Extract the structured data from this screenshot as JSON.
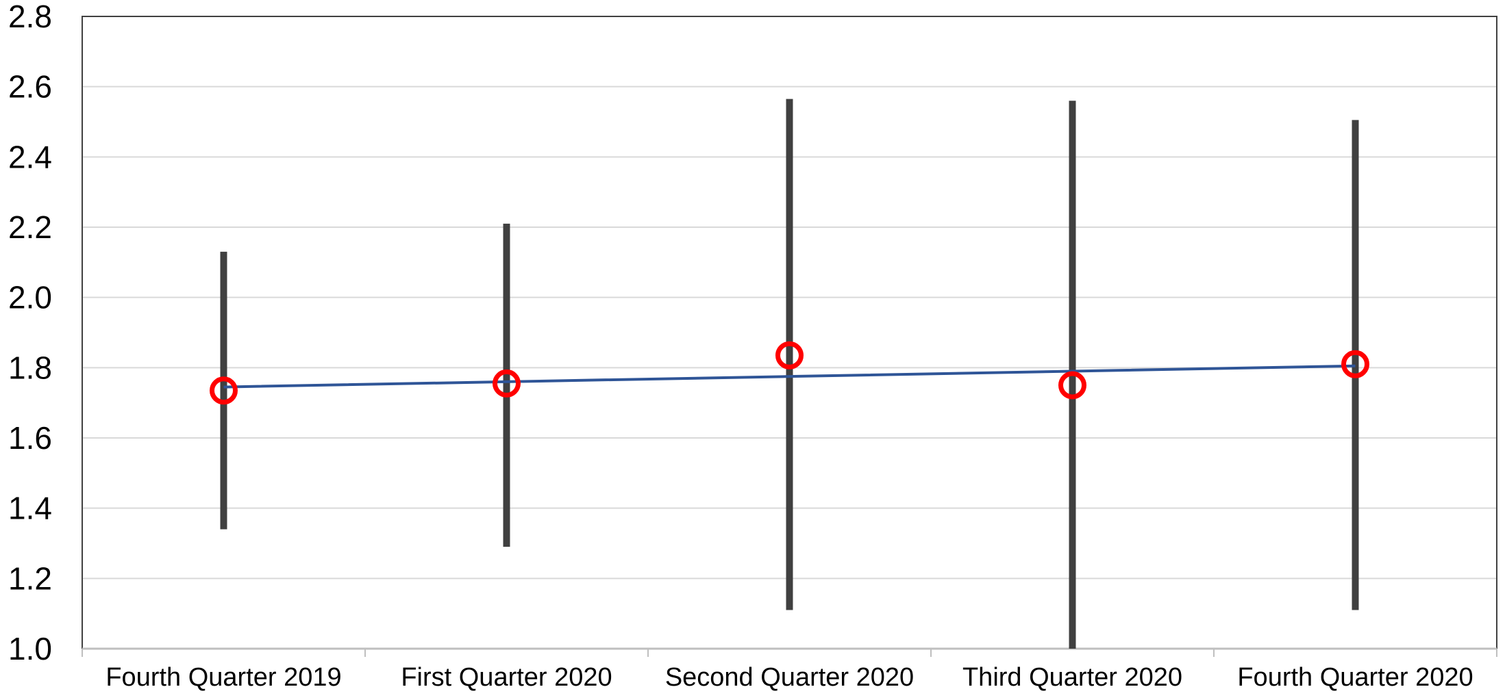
{
  "chart_data": {
    "type": "line",
    "title": "",
    "xlabel": "",
    "ylabel": "",
    "ylim": [
      1.0,
      2.8
    ],
    "y_ticks": [
      "1.0",
      "1.2",
      "1.4",
      "1.6",
      "1.8",
      "2.0",
      "2.2",
      "2.4",
      "2.6",
      "2.8"
    ],
    "grid": true,
    "legend": "none",
    "categories": [
      "Fourth Quarter 2019",
      "First Quarter 2020",
      "Second Quarter 2020",
      "Third Quarter 2020",
      "Fourth Quarter 2020"
    ],
    "series": [
      {
        "type": "line",
        "color": "#2f5597",
        "values": [
          1.745,
          1.76,
          1.775,
          1.79,
          1.805
        ]
      },
      {
        "type": "scatter",
        "marker": "circle-open",
        "color": "#ff0000",
        "values": [
          1.735,
          1.755,
          1.835,
          1.75,
          1.81
        ]
      },
      {
        "type": "range",
        "color": "#404040",
        "low": [
          1.34,
          1.29,
          1.11,
          1.0,
          1.11
        ],
        "high": [
          2.13,
          2.21,
          2.565,
          2.56,
          2.505
        ]
      }
    ],
    "colors": {
      "grid": "#d9d9d9",
      "axis": "#bfbfbf",
      "frame": "#404040"
    }
  }
}
